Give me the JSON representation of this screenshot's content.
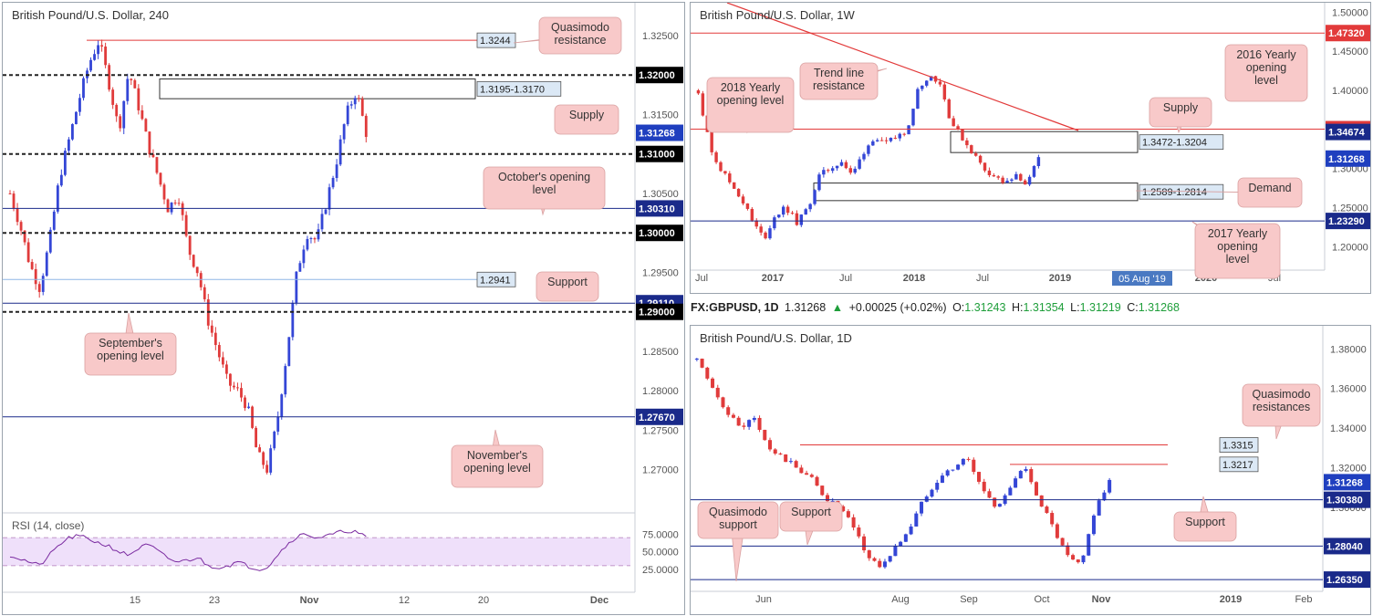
{
  "panels": {
    "h4": {
      "title": "British Pound/U.S. Dollar, 240"
    },
    "w1": {
      "title": "British Pound/U.S. Dollar, 1W"
    },
    "d1": {
      "title": "British Pound/U.S. Dollar, 1D"
    }
  },
  "ticker": {
    "symbol": "FX:GBPUSD, 1D",
    "last": "1.31268",
    "change": "+0.00025 (+0.02%)",
    "o_label": "O:",
    "o": "1.31243",
    "h_label": "H:",
    "h": "1.31354",
    "l_label": "L:",
    "l": "1.31219",
    "c_label": "C:",
    "c": "1.31268"
  },
  "colors": {
    "bull": "#3446d6",
    "bear": "#e03b3b",
    "resistance": "#e23a3a",
    "level": "#1a2a8a",
    "support_line": "#8fb5e6",
    "callout": "#f8c9c9",
    "rsi_fill": "#efe0fa",
    "rsi_line": "#7a2aa0"
  },
  "chart_data": [
    {
      "type": "candlestick",
      "title": "British Pound/U.S. Dollar, 240",
      "ylim": [
        1.265,
        1.328
      ],
      "y_ticks": [
        "1.32500",
        "1.32000",
        "1.31500",
        "1.31000",
        "1.30500",
        "1.30000",
        "1.29500",
        "1.29000",
        "1.28500",
        "1.28000",
        "1.27500",
        "1.27000"
      ],
      "x_ticks": [
        "15",
        "23",
        "Nov",
        "12",
        "20",
        "Dec"
      ],
      "price_path": [
        1.305,
        1.301,
        1.296,
        1.293,
        1.299,
        1.307,
        1.312,
        1.317,
        1.3215,
        1.3244,
        1.319,
        1.313,
        1.3205,
        1.316,
        1.311,
        1.307,
        1.303,
        1.305,
        1.298,
        1.295,
        1.289,
        1.285,
        1.281,
        1.28,
        1.278,
        1.272,
        1.27,
        1.276,
        1.285,
        1.295,
        1.3,
        1.299,
        1.304,
        1.309,
        1.315,
        1.318,
        1.3127
      ],
      "levels": [
        {
          "value": 1.3244,
          "label": "1.3244",
          "style": "resistance"
        },
        {
          "value": 1.32,
          "label": "1.32000",
          "style": "round"
        },
        {
          "value": 1.31,
          "label": "1.31000",
          "style": "round"
        },
        {
          "value": 1.3031,
          "label": "1.30310",
          "style": "level"
        },
        {
          "value": 1.3,
          "label": "1.30000",
          "style": "round"
        },
        {
          "value": 1.2941,
          "label": "1.2941",
          "style": "support"
        },
        {
          "value": 1.2911,
          "label": "1.29110",
          "style": "level"
        },
        {
          "value": 1.29,
          "label": "1.29000",
          "style": "round"
        },
        {
          "value": 1.2767,
          "label": "1.27670",
          "style": "level"
        }
      ],
      "zones": [
        {
          "low": 1.317,
          "high": 1.3195,
          "label": "1.3195-1.3170"
        }
      ],
      "current_price": "1.31268",
      "annotations": [
        "Quasimodo resistance",
        "Supply",
        "October's opening level",
        "Support",
        "September's opening level",
        "November's opening level"
      ],
      "rsi": {
        "label": "RSI (14, close)",
        "ticks": [
          "75.0000",
          "50.0000",
          "25.0000"
        ],
        "upper": 70,
        "lower": 30,
        "values": [
          45,
          40,
          35,
          30,
          45,
          60,
          70,
          72,
          68,
          62,
          58,
          50,
          45,
          55,
          60,
          50,
          40,
          35,
          38,
          42,
          30,
          28,
          30,
          35,
          30,
          25,
          28,
          45,
          60,
          72,
          75,
          70,
          72,
          76,
          80,
          78,
          70
        ]
      }
    },
    {
      "type": "candlestick",
      "title": "British Pound/U.S. Dollar, 1W",
      "ylim": [
        1.17,
        1.505
      ],
      "y_ticks": [
        "1.50000",
        "1.45000",
        "1.40000",
        "1.35000",
        "1.30000",
        "1.25000",
        "1.20000"
      ],
      "x_ticks": [
        "Jul",
        "2017",
        "Jul",
        "2018",
        "Jul",
        "2019",
        "05 Aug '19",
        "2020",
        "Jul"
      ],
      "price_path": [
        1.4,
        1.33,
        1.3,
        1.28,
        1.26,
        1.23,
        1.21,
        1.24,
        1.25,
        1.23,
        1.25,
        1.29,
        1.3,
        1.31,
        1.29,
        1.32,
        1.34,
        1.33,
        1.34,
        1.35,
        1.4,
        1.42,
        1.41,
        1.36,
        1.34,
        1.32,
        1.3,
        1.29,
        1.28,
        1.29,
        1.28,
        1.3127
      ],
      "levels": [
        {
          "value": 1.4732,
          "label": "1.47320",
          "style": "resistance"
        },
        {
          "value": 1.3503,
          "label": "1.35030",
          "style": "resistance"
        },
        {
          "value": 1.3467,
          "label": "1.34674",
          "style": "dark"
        },
        {
          "value": 1.2329,
          "label": "1.23290",
          "style": "level"
        }
      ],
      "zones": [
        {
          "low": 1.3204,
          "high": 1.3472,
          "label": "1.3472-1.3204"
        },
        {
          "low": 1.2589,
          "high": 1.2814,
          "label": "1.2589-1.2814"
        }
      ],
      "current_price": "1.31268",
      "annotations": [
        "Trend line resistance",
        "2016 Yearly opening level",
        "2018 Yearly opening level",
        "Supply",
        "Demand",
        "2017 Yearly opening level"
      ]
    },
    {
      "type": "candlestick",
      "title": "British Pound/U.S. Dollar, 1D",
      "ylim": [
        1.258,
        1.388
      ],
      "y_ticks": [
        "1.38000",
        "1.36000",
        "1.34000",
        "1.32000",
        "1.30000",
        "1.28000"
      ],
      "x_ticks": [
        "Jun",
        "Aug",
        "Sep",
        "Oct",
        "Nov",
        "2019",
        "Feb"
      ],
      "price_path": [
        1.375,
        1.36,
        1.35,
        1.34,
        1.345,
        1.33,
        1.325,
        1.32,
        1.315,
        1.305,
        1.3,
        1.29,
        1.275,
        1.27,
        1.28,
        1.29,
        1.305,
        1.315,
        1.32,
        1.325,
        1.31,
        1.3,
        1.31,
        1.32,
        1.305,
        1.29,
        1.275,
        1.27,
        1.3,
        1.3127
      ],
      "levels": [
        {
          "value": 1.3315,
          "label": "1.3315",
          "style": "resistance"
        },
        {
          "value": 1.3217,
          "label": "1.3217",
          "style": "resistance"
        },
        {
          "value": 1.3038,
          "label": "1.30380",
          "style": "level"
        },
        {
          "value": 1.2804,
          "label": "1.28040",
          "style": "level"
        },
        {
          "value": 1.2635,
          "label": "1.26350",
          "style": "level"
        }
      ],
      "current_price": "1.31268",
      "annotations": [
        "Quasimodo resistances",
        "Quasimodo support",
        "Support",
        "Support"
      ]
    }
  ]
}
